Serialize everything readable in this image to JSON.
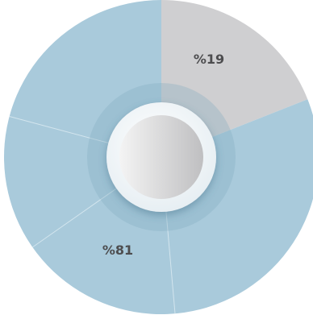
{
  "chart_data": {
    "type": "pie",
    "slices": [
      {
        "label": "%19",
        "value": 19,
        "color": "#cfcfd1"
      },
      {
        "label": "%81",
        "value": 81,
        "color": "#a9cadb"
      }
    ],
    "divider_color": "#d3e5ee",
    "inner_ring_color": "#8fb5c9",
    "center_knob_colors": [
      "#f2f2f2",
      "#c4c4c6"
    ]
  }
}
